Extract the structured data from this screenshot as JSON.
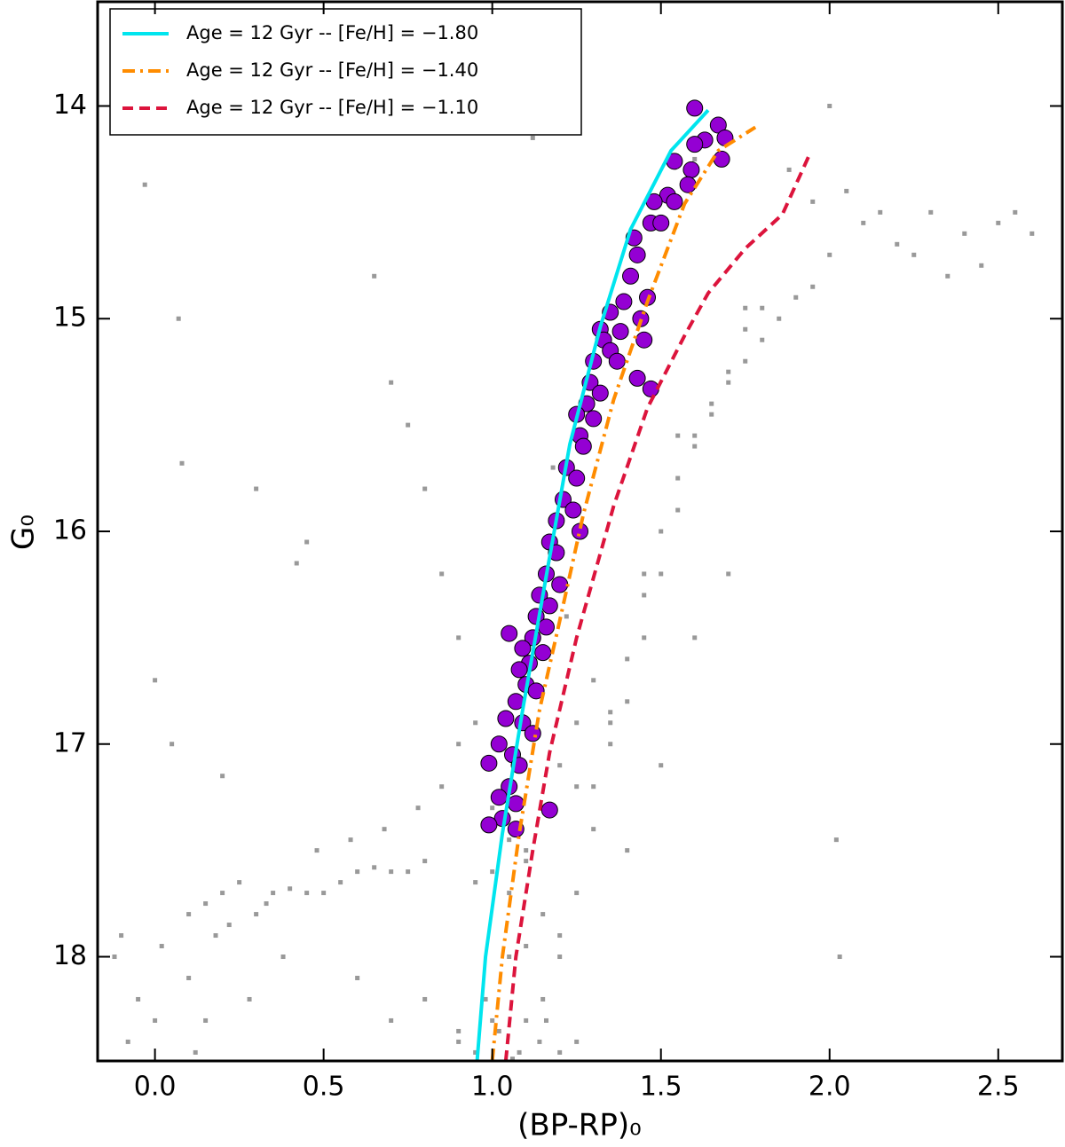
{
  "chart_data": {
    "type": "scatter",
    "x_label": "(BP-RP)₀",
    "y_label": "G₀",
    "xlim": [
      -0.17,
      2.69
    ],
    "ylim": [
      18.49,
      13.51
    ],
    "xticks": [
      {
        "value": 0,
        "label": "0.0"
      },
      0.5,
      {
        "value": 1,
        "label": "1.0"
      },
      1.5,
      {
        "value": 2,
        "label": "2.0"
      },
      2.5
    ],
    "yticks": [
      14,
      15,
      16,
      17,
      18
    ],
    "legend": "upper left",
    "series": [
      {
        "color": "#999999",
        "style": "points",
        "x": [
          -0.03,
          0.07,
          0.08,
          0.2,
          0.45,
          0.42,
          0.0,
          0.3,
          0.05,
          -0.1,
          -0.05,
          0.0,
          0.1,
          0.15,
          0.2,
          0.25,
          0.3,
          0.35,
          0.4,
          0.45,
          0.5,
          0.55,
          0.6,
          0.65,
          0.7,
          0.75,
          0.8,
          0.1,
          0.15,
          0.18,
          0.22,
          0.28,
          0.33,
          0.38,
          0.48,
          0.58,
          0.68,
          0.78,
          0.85,
          0.9,
          -0.08,
          -0.12,
          0.02,
          0.12,
          0.6,
          0.7,
          0.8,
          0.9,
          0.95,
          1.0,
          1.05,
          1.1,
          1.15,
          1.2,
          1.25,
          1.3,
          0.9,
          0.95,
          1.0,
          1.05,
          1.1,
          1.15,
          1.2,
          1.25,
          1.3,
          1.35,
          1.4,
          1.45,
          1.5,
          1.55,
          1.6,
          1.65,
          1.7,
          1.75,
          1.8,
          1.85,
          1.9,
          1.95,
          2.0,
          1.35,
          1.4,
          1.45,
          1.5,
          1.55,
          1.6,
          1.65,
          1.7,
          1.75,
          1.8,
          1.3,
          1.25,
          1.2,
          1.15,
          1.1,
          1.05,
          1.0,
          0.95,
          0.9,
          0.85,
          0.8,
          0.75,
          0.7,
          0.65,
          1.4,
          1.5,
          1.6,
          1.7,
          2.1,
          2.2,
          2.3,
          2.4,
          2.5,
          2.6,
          2.05,
          2.15,
          2.25,
          2.35,
          2.45,
          2.55,
          1.95,
          2.0,
          2.02,
          2.03,
          1.88,
          1.6,
          1.75,
          1.55,
          1.45,
          1.35,
          1.25,
          1.12,
          1.18,
          1.22,
          0.98,
          1.02,
          1.08,
          1.14,
          1.16,
          1.2,
          1.06,
          1.1
        ],
        "values": [
          14.37,
          15.0,
          15.68,
          17.15,
          16.05,
          16.15,
          16.7,
          15.8,
          17.0,
          17.9,
          18.2,
          18.3,
          17.8,
          17.75,
          17.7,
          17.65,
          17.8,
          17.7,
          17.68,
          17.7,
          17.7,
          17.65,
          17.6,
          17.58,
          17.6,
          17.6,
          17.55,
          18.1,
          18.3,
          17.9,
          17.85,
          18.2,
          17.75,
          18.0,
          17.5,
          17.45,
          17.4,
          17.3,
          17.2,
          17.0,
          18.4,
          18.0,
          17.95,
          18.45,
          18.1,
          18.3,
          18.2,
          18.35,
          17.65,
          17.6,
          17.7,
          17.55,
          17.8,
          17.9,
          17.7,
          17.4,
          18.4,
          18.45,
          18.3,
          18.0,
          17.95,
          18.2,
          18.0,
          18.4,
          17.2,
          16.9,
          16.6,
          16.3,
          16.0,
          15.75,
          15.55,
          15.45,
          15.3,
          15.2,
          15.1,
          15.0,
          14.9,
          14.85,
          14.7,
          17.0,
          16.8,
          16.5,
          16.2,
          15.9,
          15.6,
          15.4,
          15.25,
          15.05,
          14.95,
          16.7,
          16.9,
          17.1,
          17.3,
          17.5,
          17.45,
          17.3,
          16.9,
          16.5,
          16.2,
          15.8,
          15.5,
          15.3,
          14.8,
          17.5,
          17.1,
          16.5,
          16.2,
          14.55,
          14.65,
          14.5,
          14.6,
          14.55,
          14.6,
          14.4,
          14.5,
          14.7,
          14.8,
          14.75,
          14.5,
          14.45,
          14.0,
          17.45,
          18.0,
          14.3,
          14.25,
          14.95,
          15.55,
          16.2,
          16.85,
          17.2,
          14.15,
          15.7,
          16.4,
          18.2,
          18.35,
          18.45,
          18.4,
          18.3,
          18.45,
          18.48,
          18.3
        ]
      },
      {
        "color": "#9400d3",
        "style": "points",
        "x": [
          1.6,
          1.67,
          1.69,
          1.63,
          1.6,
          1.68,
          1.54,
          1.59,
          1.58,
          1.52,
          1.54,
          1.48,
          1.47,
          1.5,
          1.42,
          1.43,
          1.41,
          1.39,
          1.46,
          1.44,
          1.35,
          1.32,
          1.38,
          1.33,
          1.35,
          1.3,
          1.37,
          1.45,
          1.43,
          1.47,
          1.29,
          1.32,
          1.28,
          1.25,
          1.3,
          1.26,
          1.27,
          1.22,
          1.25,
          1.21,
          1.24,
          1.19,
          1.26,
          1.17,
          1.19,
          1.16,
          1.2,
          1.14,
          1.17,
          1.13,
          1.16,
          1.05,
          1.12,
          1.09,
          1.15,
          1.11,
          1.08,
          1.1,
          1.13,
          1.07,
          1.04,
          1.09,
          1.12,
          1.02,
          1.06,
          0.99,
          1.08,
          1.05,
          1.02,
          1.07,
          1.17,
          1.03,
          0.99,
          1.07
        ],
        "values": [
          14.01,
          14.09,
          14.15,
          14.16,
          14.18,
          14.25,
          14.26,
          14.3,
          14.37,
          14.42,
          14.45,
          14.45,
          14.55,
          14.55,
          14.62,
          14.7,
          14.8,
          14.92,
          14.9,
          15.0,
          14.97,
          15.05,
          15.06,
          15.1,
          15.15,
          15.2,
          15.2,
          15.1,
          15.28,
          15.33,
          15.3,
          15.35,
          15.4,
          15.45,
          15.47,
          15.55,
          15.6,
          15.7,
          15.75,
          15.85,
          15.9,
          15.95,
          16.0,
          16.05,
          16.1,
          16.2,
          16.25,
          16.3,
          16.35,
          16.4,
          16.45,
          16.48,
          16.5,
          16.55,
          16.57,
          16.62,
          16.65,
          16.72,
          16.75,
          16.8,
          16.88,
          16.9,
          16.95,
          17.0,
          17.05,
          17.09,
          17.1,
          17.2,
          17.25,
          17.28,
          17.31,
          17.35,
          17.38,
          17.4
        ]
      },
      {
        "name": "Age = 12 Gyr -- [Fe/H] = −1.80",
        "color": "#00e5ee",
        "style": "solid",
        "x": [
          0.955,
          0.98,
          1.03,
          1.09,
          1.16,
          1.23,
          1.32,
          1.41,
          1.53,
          1.64
        ],
        "values": [
          18.49,
          18.0,
          17.42,
          16.84,
          16.21,
          15.59,
          15.04,
          14.58,
          14.21,
          14.02
        ]
      },
      {
        "name": "Age = 12 Gyr -- [Fe/H] = −1.40",
        "color": "#ff8c00",
        "style": "dashdot",
        "x": [
          1.0,
          1.03,
          1.08,
          1.14,
          1.2,
          1.27,
          1.36,
          1.46,
          1.57,
          1.67,
          1.78
        ],
        "values": [
          18.49,
          18.0,
          17.42,
          16.84,
          16.42,
          15.92,
          15.38,
          14.92,
          14.46,
          14.21,
          14.1
        ]
      },
      {
        "name": "Age = 12 Gyr -- [Fe/H] = −1.10",
        "color": "#dc143c",
        "style": "dashed",
        "x": [
          1.04,
          1.07,
          1.12,
          1.17,
          1.25,
          1.36,
          1.46,
          1.57,
          1.64,
          1.75,
          1.86,
          1.94
        ],
        "values": [
          18.49,
          18.0,
          17.5,
          17.04,
          16.5,
          15.88,
          15.42,
          15.08,
          14.88,
          14.67,
          14.51,
          14.23
        ]
      }
    ]
  }
}
